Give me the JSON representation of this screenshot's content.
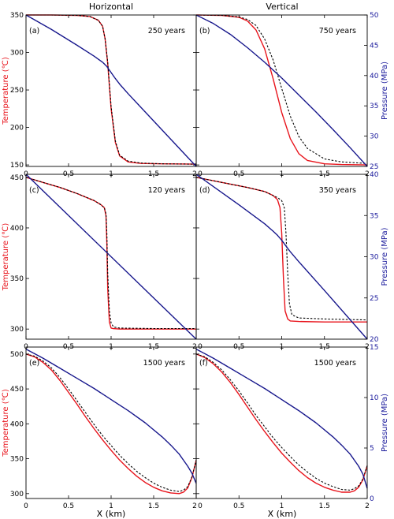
{
  "colors": {
    "temperature": "#e8141c",
    "pressure": "#1b1b9c",
    "reference": "#000000",
    "axis": "#000000"
  },
  "column_titles": [
    "Horizontal",
    "Vertical"
  ],
  "x_axis": {
    "label": "X (km)",
    "ticks": [
      0,
      0.5,
      1,
      1.5,
      2
    ],
    "tick_labels": [
      "0",
      "0.5",
      "1",
      "1.5",
      "2"
    ],
    "range": [
      0,
      2
    ]
  },
  "row_labels": {
    "left": "Temperature (℃)",
    "right": "Pressure (MPa)"
  },
  "chart_data": [
    {
      "type": "line",
      "panel": "(a)",
      "time_label": "250 years",
      "row": 0,
      "col": 0,
      "temp_range": [
        148,
        350
      ],
      "temp_ticks": [
        150,
        200,
        250,
        300,
        350
      ],
      "temp_tick_labels": [
        "150",
        "200",
        "250",
        "300",
        "350"
      ],
      "pres_range": [
        25,
        50
      ],
      "series": [
        {
          "key": "temperature",
          "x": [
            0,
            0.3,
            0.6,
            0.75,
            0.85,
            0.9,
            0.93,
            0.96,
            1.0,
            1.05,
            1.1,
            1.2,
            1.35,
            1.6,
            2.0
          ],
          "y": [
            350,
            350,
            349.5,
            348,
            343,
            335,
            318,
            285,
            225,
            180,
            162,
            154,
            152,
            151.5,
            151
          ]
        },
        {
          "key": "reference",
          "x": [
            0,
            0.3,
            0.6,
            0.75,
            0.85,
            0.9,
            0.93,
            0.96,
            1.0,
            1.05,
            1.1,
            1.2,
            1.35,
            1.6,
            2.0
          ],
          "y": [
            350,
            350,
            349.5,
            348,
            343,
            335,
            318,
            287,
            228,
            182,
            163,
            155,
            152.5,
            151.5,
            151
          ]
        },
        {
          "key": "pressure",
          "x": [
            0,
            0.3,
            0.6,
            0.8,
            0.9,
            0.95,
            1.0,
            1.05,
            1.1,
            1.2,
            1.5,
            2.0
          ],
          "y": [
            50,
            47.6,
            45,
            43.2,
            42.2,
            41.5,
            40.5,
            39.5,
            38.6,
            37,
            32.5,
            25
          ]
        }
      ]
    },
    {
      "type": "line",
      "panel": "(b)",
      "time_label": "750 years",
      "row": 0,
      "col": 1,
      "temp_range": [
        148,
        350
      ],
      "temp_ticks": [
        150,
        200,
        250,
        300,
        350
      ],
      "pres_range": [
        25,
        50
      ],
      "pres_ticks": [
        25,
        30,
        35,
        40,
        45,
        50
      ],
      "pres_tick_labels": [
        "25",
        "30",
        "35",
        "40",
        "45",
        "50"
      ],
      "series": [
        {
          "key": "temperature",
          "x": [
            0,
            0.3,
            0.5,
            0.6,
            0.7,
            0.8,
            0.9,
            1.0,
            1.1,
            1.2,
            1.3,
            1.5,
            1.7,
            2.0
          ],
          "y": [
            350,
            349.5,
            347,
            342,
            330,
            305,
            265,
            220,
            185,
            165,
            156,
            151.5,
            150.5,
            150
          ]
        },
        {
          "key": "reference",
          "x": [
            0,
            0.3,
            0.5,
            0.6,
            0.7,
            0.8,
            0.9,
            1.0,
            1.1,
            1.2,
            1.3,
            1.5,
            1.7,
            2.0
          ],
          "y": [
            350,
            349.5,
            347.5,
            344,
            336,
            318,
            290,
            252,
            215,
            188,
            172,
            158,
            154,
            152
          ]
        },
        {
          "key": "pressure",
          "x": [
            0,
            0.2,
            0.4,
            0.6,
            0.8,
            1.0,
            1.2,
            1.4,
            1.6,
            1.8,
            2.0
          ],
          "y": [
            50,
            48.6,
            46.8,
            44.6,
            42.2,
            39.6,
            36.8,
            34,
            31.1,
            28.1,
            25
          ]
        }
      ]
    },
    {
      "type": "line",
      "panel": "(c)",
      "time_label": "120 years",
      "row": 1,
      "col": 0,
      "temp_range": [
        290,
        453
      ],
      "temp_ticks": [
        300,
        350,
        400,
        450
      ],
      "temp_tick_labels": [
        "300",
        "350",
        "400",
        "450"
      ],
      "pres_range": [
        20,
        40
      ],
      "series": [
        {
          "key": "temperature",
          "x": [
            0,
            0.2,
            0.4,
            0.6,
            0.8,
            0.88,
            0.92,
            0.94,
            0.95,
            0.96,
            0.98,
            1.0,
            1.02,
            1.1,
            1.5,
            2.0
          ],
          "y": [
            450,
            445,
            440,
            434,
            427,
            423,
            420,
            412,
            385,
            340,
            307,
            301,
            300.5,
            300,
            300,
            300
          ]
        },
        {
          "key": "reference",
          "x": [
            0,
            0.2,
            0.4,
            0.6,
            0.8,
            0.88,
            0.92,
            0.94,
            0.95,
            0.96,
            0.98,
            1.0,
            1.03,
            1.1,
            1.5,
            2.0
          ],
          "y": [
            450,
            445,
            440,
            434,
            427,
            423,
            420,
            414,
            395,
            355,
            318,
            306,
            302,
            301,
            300.5,
            300.5
          ]
        },
        {
          "key": "pressure",
          "x": [
            0,
            2.0
          ],
          "y": [
            40,
            20
          ]
        }
      ]
    },
    {
      "type": "line",
      "panel": "(d)",
      "time_label": "350 years",
      "row": 1,
      "col": 1,
      "temp_range": [
        290,
        453
      ],
      "temp_ticks": [
        300,
        350,
        400,
        450
      ],
      "pres_range": [
        20,
        40
      ],
      "pres_ticks": [
        20,
        25,
        30,
        35,
        40
      ],
      "pres_tick_labels": [
        "20",
        "25",
        "30",
        "35",
        "40"
      ],
      "series": [
        {
          "key": "temperature",
          "x": [
            0,
            0.3,
            0.6,
            0.8,
            0.9,
            0.95,
            0.98,
            1.0,
            1.02,
            1.04,
            1.07,
            1.1,
            1.2,
            1.5,
            2.0
          ],
          "y": [
            450,
            445,
            440,
            436,
            432,
            428,
            420,
            395,
            350,
            318,
            310,
            308,
            307.5,
            307,
            307
          ]
        },
        {
          "key": "reference",
          "x": [
            0,
            0.3,
            0.6,
            0.8,
            0.9,
            0.95,
            1.0,
            1.03,
            1.05,
            1.07,
            1.09,
            1.12,
            1.2,
            1.5,
            2.0
          ],
          "y": [
            450,
            445,
            440,
            436,
            432,
            430,
            427,
            420,
            395,
            355,
            325,
            314,
            311,
            310,
            309
          ]
        },
        {
          "key": "pressure",
          "x": [
            0,
            0.5,
            0.8,
            0.9,
            0.95,
            1.0,
            1.05,
            1.1,
            1.2,
            1.5,
            2.0
          ],
          "y": [
            40,
            36.3,
            34,
            33.1,
            32.6,
            32,
            31.3,
            30.6,
            29.4,
            25.9,
            20
          ]
        }
      ]
    },
    {
      "type": "line",
      "panel": "(e)",
      "time_label": "1500 years",
      "row": 2,
      "col": 0,
      "temp_range": [
        293,
        510
      ],
      "temp_ticks": [
        300,
        350,
        400,
        450,
        500
      ],
      "temp_tick_labels": [
        "300",
        "350",
        "400",
        "450",
        "500"
      ],
      "pres_range": [
        0,
        15
      ],
      "series": [
        {
          "key": "temperature",
          "x": [
            0,
            0.1,
            0.2,
            0.3,
            0.4,
            0.5,
            0.6,
            0.7,
            0.8,
            0.9,
            1.0,
            1.1,
            1.2,
            1.3,
            1.4,
            1.5,
            1.6,
            1.7,
            1.8,
            1.85,
            1.9,
            1.95,
            2.0
          ],
          "y": [
            500,
            496,
            488,
            477,
            462,
            445,
            428,
            410,
            393,
            377,
            362,
            348,
            336,
            325,
            316,
            309,
            304,
            301,
            300,
            302,
            308,
            323,
            348
          ]
        },
        {
          "key": "reference",
          "x": [
            0,
            0.1,
            0.2,
            0.3,
            0.4,
            0.5,
            0.6,
            0.7,
            0.8,
            0.9,
            1.0,
            1.1,
            1.2,
            1.3,
            1.4,
            1.5,
            1.6,
            1.7,
            1.8,
            1.85,
            1.9,
            1.95,
            2.0
          ],
          "y": [
            500,
            497,
            490,
            480,
            466,
            450,
            433,
            416,
            399,
            383,
            369,
            355,
            343,
            332,
            323,
            315,
            309,
            305,
            303,
            305,
            310,
            324,
            348
          ]
        },
        {
          "key": "pressure",
          "x": [
            0,
            0.2,
            0.4,
            0.6,
            0.8,
            1.0,
            1.2,
            1.4,
            1.6,
            1.7,
            1.8,
            1.85,
            1.9,
            1.95,
            2.0
          ],
          "y": [
            14.8,
            13.9,
            12.9,
            11.9,
            10.9,
            9.8,
            8.7,
            7.5,
            6.1,
            5.3,
            4.4,
            3.8,
            3.2,
            2.5,
            1.5
          ]
        }
      ]
    },
    {
      "type": "line",
      "panel": "(f)",
      "time_label": "1500 years",
      "row": 2,
      "col": 1,
      "temp_range": [
        293,
        510
      ],
      "temp_ticks": [
        300,
        350,
        400,
        450,
        500
      ],
      "pres_range": [
        0,
        15
      ],
      "pres_ticks": [
        0,
        5,
        10,
        15
      ],
      "pres_tick_labels": [
        "0",
        "5",
        "10",
        "15"
      ],
      "series": [
        {
          "key": "temperature",
          "x": [
            0,
            0.1,
            0.2,
            0.3,
            0.4,
            0.5,
            0.6,
            0.7,
            0.8,
            0.9,
            1.0,
            1.1,
            1.2,
            1.3,
            1.4,
            1.5,
            1.6,
            1.7,
            1.8,
            1.85,
            1.9,
            1.95,
            2.0
          ],
          "y": [
            500,
            495,
            486,
            474,
            459,
            442,
            424,
            406,
            389,
            373,
            358,
            345,
            333,
            323,
            315,
            309,
            305,
            302,
            302,
            304,
            309,
            320,
            340
          ]
        },
        {
          "key": "reference",
          "x": [
            0,
            0.1,
            0.2,
            0.3,
            0.4,
            0.5,
            0.6,
            0.7,
            0.8,
            0.9,
            1.0,
            1.1,
            1.2,
            1.3,
            1.4,
            1.5,
            1.6,
            1.7,
            1.8,
            1.85,
            1.9,
            1.95,
            2.0
          ],
          "y": [
            500,
            496,
            488,
            477,
            463,
            447,
            430,
            412,
            396,
            380,
            366,
            353,
            341,
            331,
            322,
            315,
            310,
            306,
            305,
            307,
            311,
            321,
            340
          ]
        },
        {
          "key": "pressure",
          "x": [
            0,
            0.2,
            0.4,
            0.6,
            0.8,
            1.0,
            1.2,
            1.4,
            1.6,
            1.7,
            1.8,
            1.85,
            1.9,
            1.95,
            2.0
          ],
          "y": [
            14.8,
            13.9,
            12.9,
            11.9,
            10.9,
            9.8,
            8.7,
            7.5,
            6.1,
            5.3,
            4.4,
            3.8,
            3.2,
            2.4,
            1.0
          ]
        }
      ]
    }
  ]
}
